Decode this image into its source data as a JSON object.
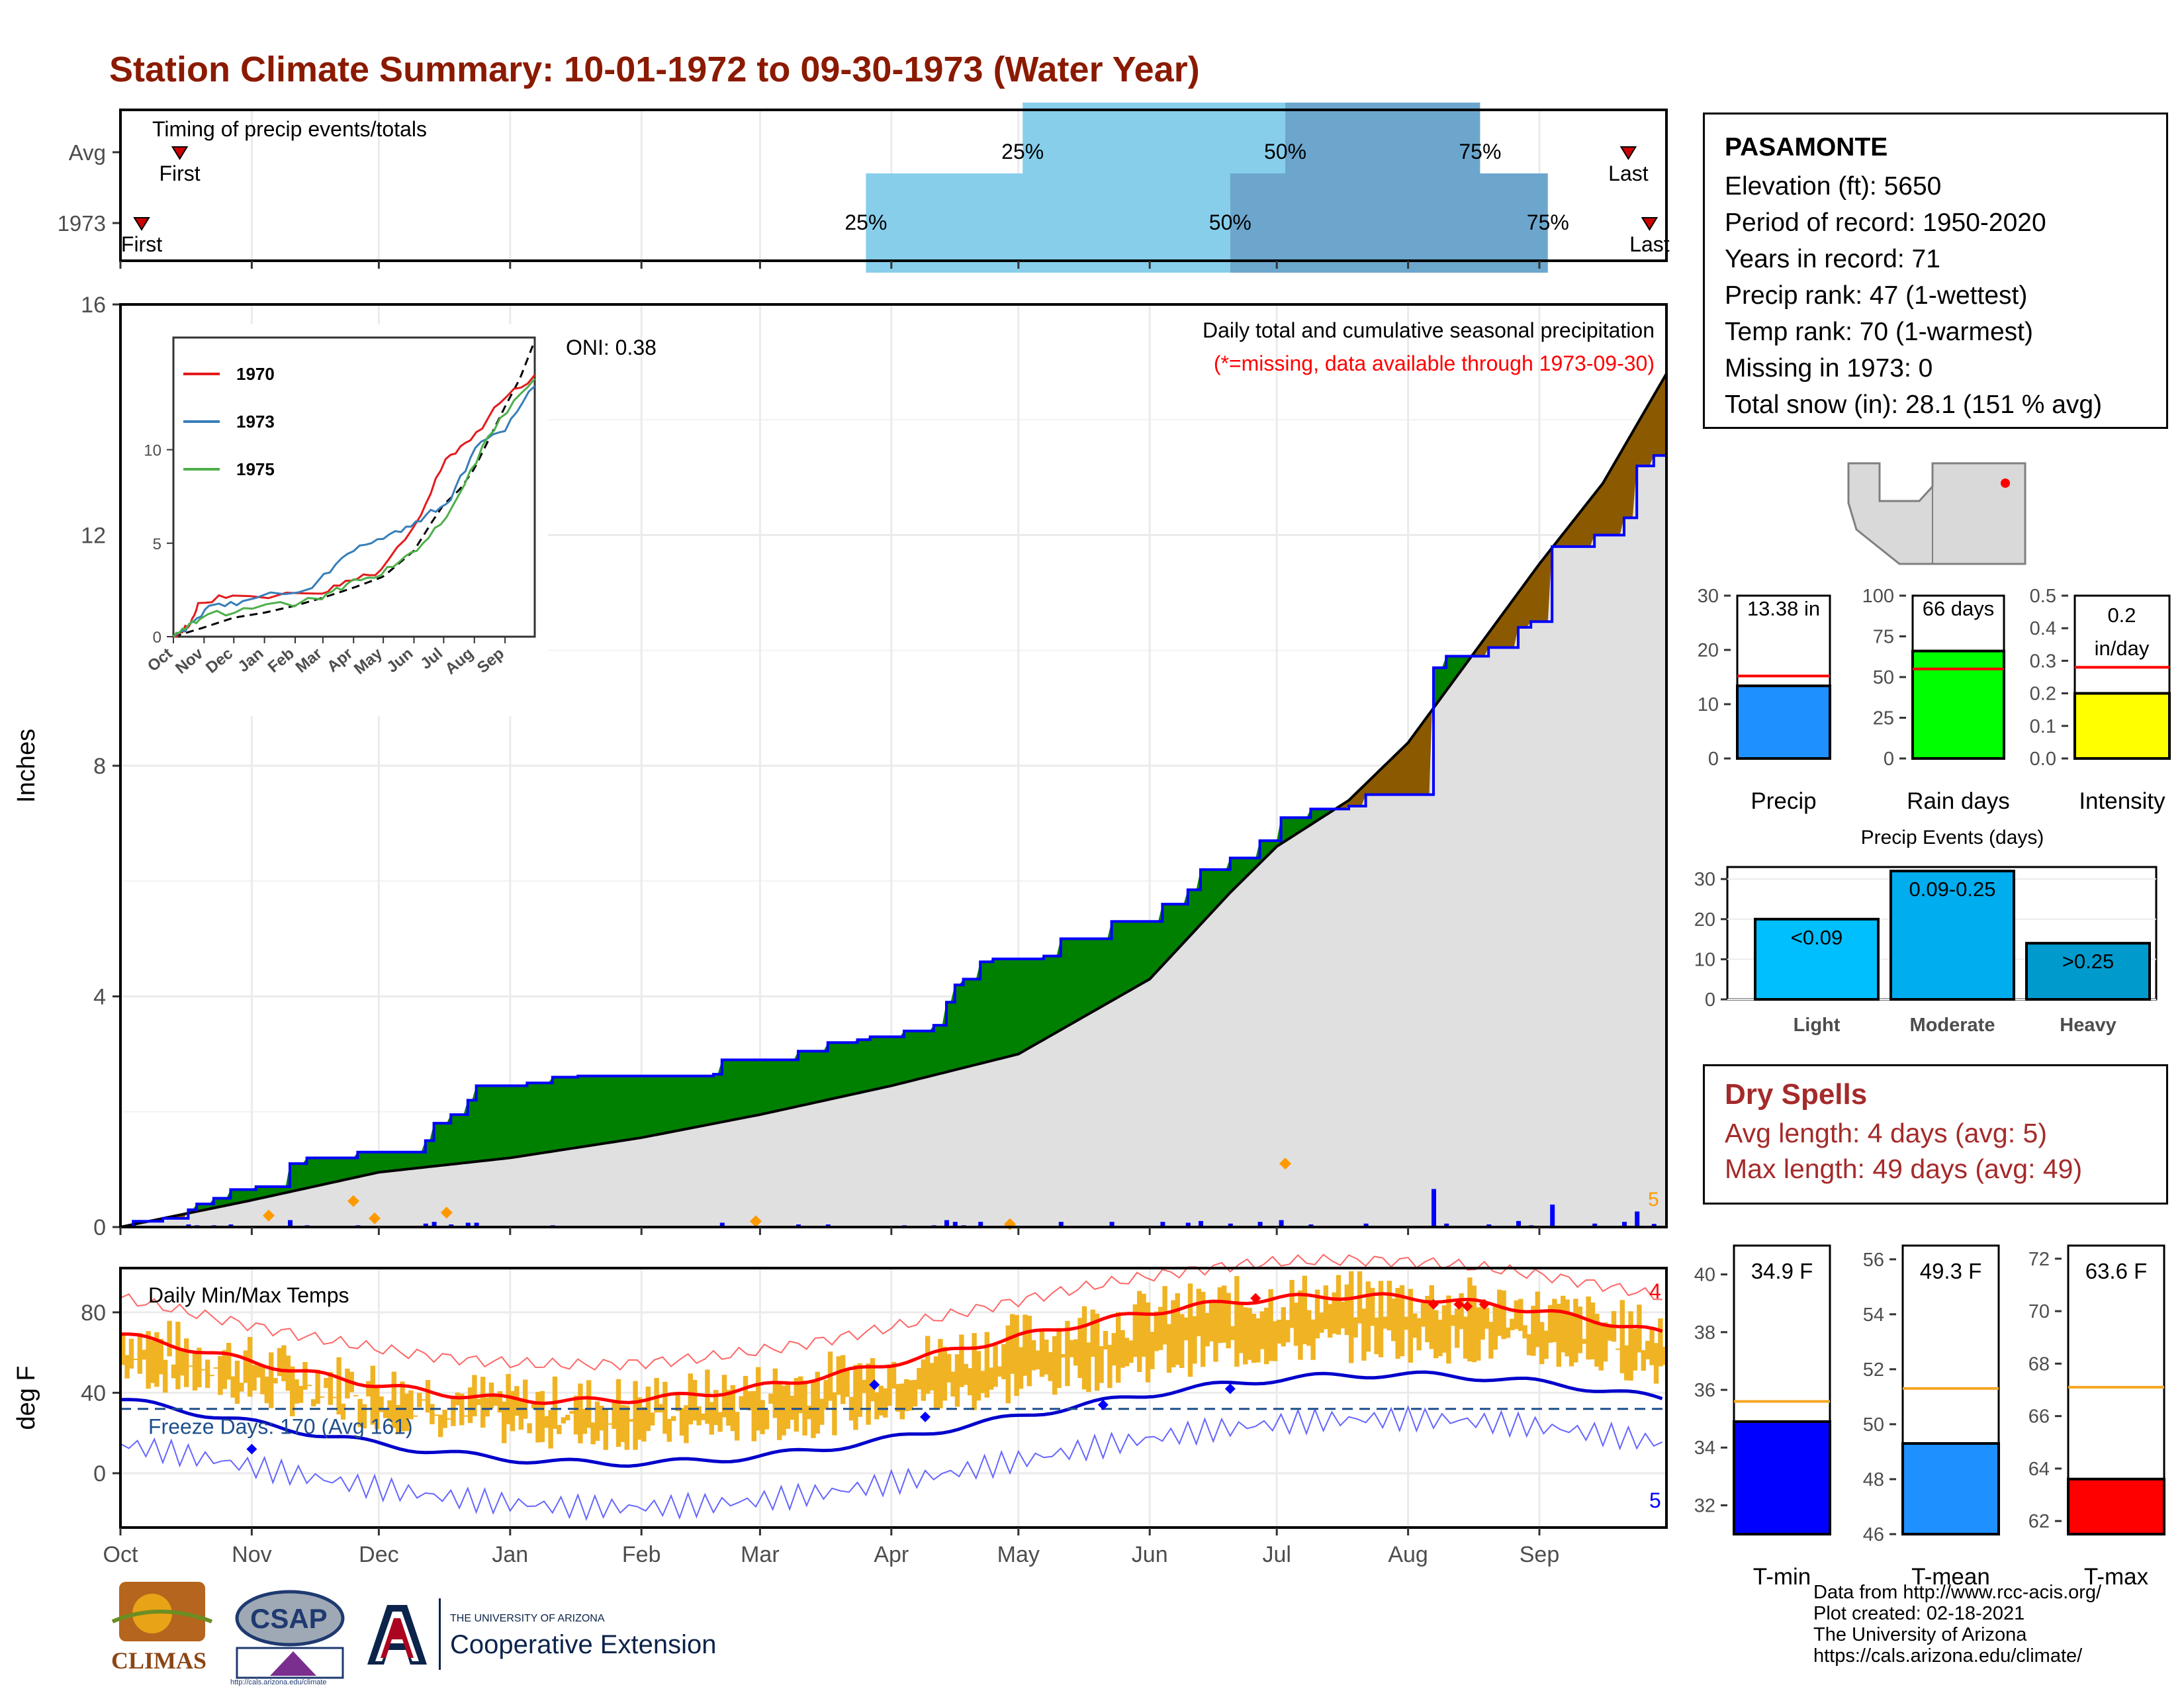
{
  "title": "Station Climate Summary: 10-01-1972 to 09-30-1973 (Water Year)",
  "months": [
    "Oct",
    "Nov",
    "Dec",
    "Jan",
    "Feb",
    "Mar",
    "Apr",
    "May",
    "Jun",
    "Jul",
    "Aug",
    "Sep"
  ],
  "timing": {
    "label": "Timing of precip events/totals",
    "rows": [
      {
        "name": "Avg",
        "first_label": "First",
        "last_label": "Last",
        "p25": "25%",
        "p50": "50%",
        "p75": "75%",
        "first_day": 14,
        "last_day": 356,
        "p25_day": 213,
        "p50_day": 275,
        "p75_day": 321
      },
      {
        "name": "1973",
        "first_label": "First",
        "last_label": "Last",
        "p25": "25%",
        "p50": "50%",
        "p75": "75%",
        "first_day": 5,
        "last_day": 361,
        "p25_day": 176,
        "p50_day": 262,
        "p75_day": 337
      }
    ]
  },
  "precip_panel": {
    "ylabel": "Inches",
    "ylim": [
      0,
      16
    ],
    "yticks": [
      0,
      4,
      8,
      12,
      16
    ],
    "legend_text": "Daily total and cumulative seasonal precipitation",
    "missing_note": "(*=missing, data available through 1973-09-30)",
    "oni": "ONI: 0.38",
    "corner_count": "5",
    "colors": {
      "above": "#008000",
      "below": "#8B5A00",
      "observed_line": "#0000FF",
      "normal_line": "#000000",
      "fill": "#E0E0E0",
      "daily_bar": "#0000FF"
    }
  },
  "inset": {
    "series": [
      {
        "name": "1970",
        "color": "#E41A1C"
      },
      {
        "name": "1973",
        "color": "#377EB8"
      },
      {
        "name": "1975",
        "color": "#4DAF4A"
      }
    ],
    "yticks": [
      "0",
      "5",
      "10"
    ],
    "xticks": [
      "Oct",
      "Nov",
      "Dec",
      "Jan",
      "Feb",
      "Mar",
      "Apr",
      "May",
      "Jun",
      "Jul",
      "Aug",
      "Sep"
    ]
  },
  "temp_panel": {
    "ylabel": "deg F",
    "label": "Daily Min/Max Temps",
    "freeze_text": "Freeze Days: 170 (Avg 161)",
    "yticks": [
      "0",
      "40",
      "80"
    ],
    "max_count": "4",
    "min_count": "5",
    "colors": {
      "bar": "#F0B323",
      "tmax_line": "#FF0000",
      "tmin_line": "#0000CC",
      "freeze_line": "#1F4E8C"
    }
  },
  "station": {
    "name": "PASAMONTE",
    "lines": [
      "Elevation (ft): 5650",
      "Period of record: 1950-2020",
      "Years in record: 71",
      "Precip rank: 47 (1-wettest)",
      "Temp rank: 70 (1-warmest)",
      "Missing in 1973: 0",
      "Total snow (in): 28.1 (151 % avg)"
    ]
  },
  "small_bars": [
    {
      "label": "Precip",
      "value_text": "13.38 in",
      "value": 13.38,
      "avg": 15.2,
      "ymax": 30,
      "yticks": [
        "0",
        "10",
        "20",
        "30"
      ],
      "tick_values": [
        0,
        10,
        20,
        30
      ],
      "color": "#1E90FF"
    },
    {
      "label": "Rain days",
      "value_text": "66 days",
      "value": 66,
      "avg": 55,
      "ymax": 100,
      "yticks": [
        "0",
        "25",
        "50",
        "75",
        "100"
      ],
      "tick_values": [
        0,
        25,
        50,
        75,
        100
      ],
      "color": "#00FF00"
    },
    {
      "label": "Intensity",
      "value_text": "0.2 in/day",
      "value": 0.2,
      "avg": 0.28,
      "ymax": 0.5,
      "yticks": [
        "0.0",
        "0.1",
        "0.2",
        "0.3",
        "0.4",
        "0.5"
      ],
      "tick_values": [
        0,
        0.1,
        0.2,
        0.3,
        0.4,
        0.5
      ],
      "color": "#FFFF00"
    }
  ],
  "events": {
    "title": "Precip Events (days)",
    "yticks": [
      "0",
      "10",
      "20",
      "30"
    ],
    "bars": [
      {
        "label": "Light",
        "text": "<0.09",
        "value": 20,
        "color": "#00BFFF"
      },
      {
        "label": "Moderate",
        "text": "0.09-0.25",
        "value": 32,
        "color": "#00AEEF"
      },
      {
        "label": "Heavy",
        "text": ">0.25",
        "value": 14,
        "color": "#009ACD"
      }
    ]
  },
  "dry_spells": {
    "title": "Dry Spells",
    "avg_length": "Avg length: 4 days (avg: 5)",
    "max_length": "Max length: 49 days (avg: 49)"
  },
  "temp_bars": [
    {
      "label": "T-min",
      "value_text": "34.9 F",
      "value": 34.9,
      "avg": 35.6,
      "ymin": 31,
      "ymax": 41,
      "yticks": [
        "32",
        "34",
        "36",
        "38",
        "40"
      ],
      "tick_values": [
        32,
        34,
        36,
        38,
        40
      ],
      "color": "#0000FF"
    },
    {
      "label": "T-mean",
      "value_text": "49.3 F",
      "value": 49.3,
      "avg": 51.3,
      "ymin": 46,
      "ymax": 56.5,
      "yticks": [
        "46",
        "48",
        "50",
        "52",
        "54",
        "56"
      ],
      "tick_values": [
        46,
        48,
        50,
        52,
        54,
        56
      ],
      "color": "#1E90FF"
    },
    {
      "label": "T-max",
      "value_text": "63.6 F",
      "value": 63.6,
      "avg": 67.1,
      "ymin": 61.5,
      "ymax": 72.5,
      "yticks": [
        "62",
        "64",
        "66",
        "68",
        "70",
        "72"
      ],
      "tick_values": [
        62,
        64,
        66,
        68,
        70,
        72
      ],
      "color": "#FF0000"
    }
  ],
  "footer": {
    "lines": [
      "Data from http://www.rcc-acis.org/",
      "Plot created: 02-18-2021",
      "The University of Arizona",
      "https://cals.arizona.edu/climate/"
    ],
    "logos": {
      "climas": "CLIMAS",
      "csap": "CSAP",
      "csap_url": "http://cals.arizona.edu/climate",
      "ua_small": "THE UNIVERSITY OF ARIZONA",
      "ua_big": "Cooperative Extension"
    }
  }
}
